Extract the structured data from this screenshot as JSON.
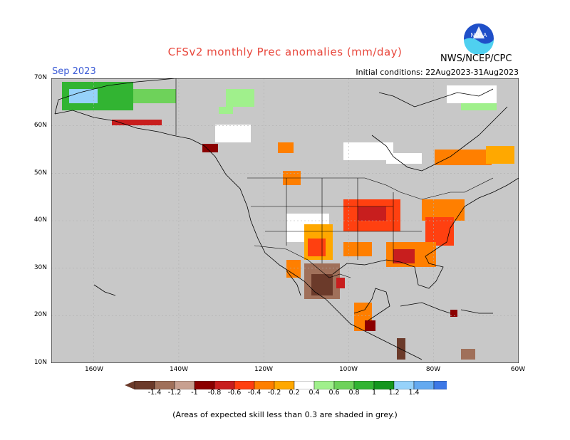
{
  "header": {
    "title": "CFSv2 monthly Prec anomalies (mm/day)",
    "month": "Sep 2023",
    "initial_conditions": "Initial conditions: 22Aug2023-31Aug2023",
    "agency": "NWS/NCEP/CPC",
    "logo_text": "NOAA"
  },
  "axes": {
    "lat_labels": [
      "70N",
      "60N",
      "50N",
      "40N",
      "30N",
      "20N",
      "10N"
    ],
    "lon_labels": [
      "160W",
      "140W",
      "120W",
      "100W",
      "80W",
      "60W"
    ]
  },
  "legend": {
    "labels": [
      "-1.4",
      "-1.2",
      "-1",
      "-0.8",
      "-0.6",
      "-0.4",
      "-0.2",
      "0.2",
      "0.4",
      "0.6",
      "0.8",
      "1",
      "1.2",
      "1.4"
    ],
    "colors": [
      "#6b3a2a",
      "#a0705a",
      "#c8a090",
      "#8b0000",
      "#c81e1e",
      "#ff4010",
      "#ff7f00",
      "#ffa800",
      "#ffffff",
      "#a0f08c",
      "#6ed25a",
      "#32b432",
      "#14961e",
      "#96d2fa",
      "#64aaf0",
      "#3c78e6"
    ]
  },
  "footnote": "(Areas of expected skill less than 0.3 are shaded in grey.)"
}
